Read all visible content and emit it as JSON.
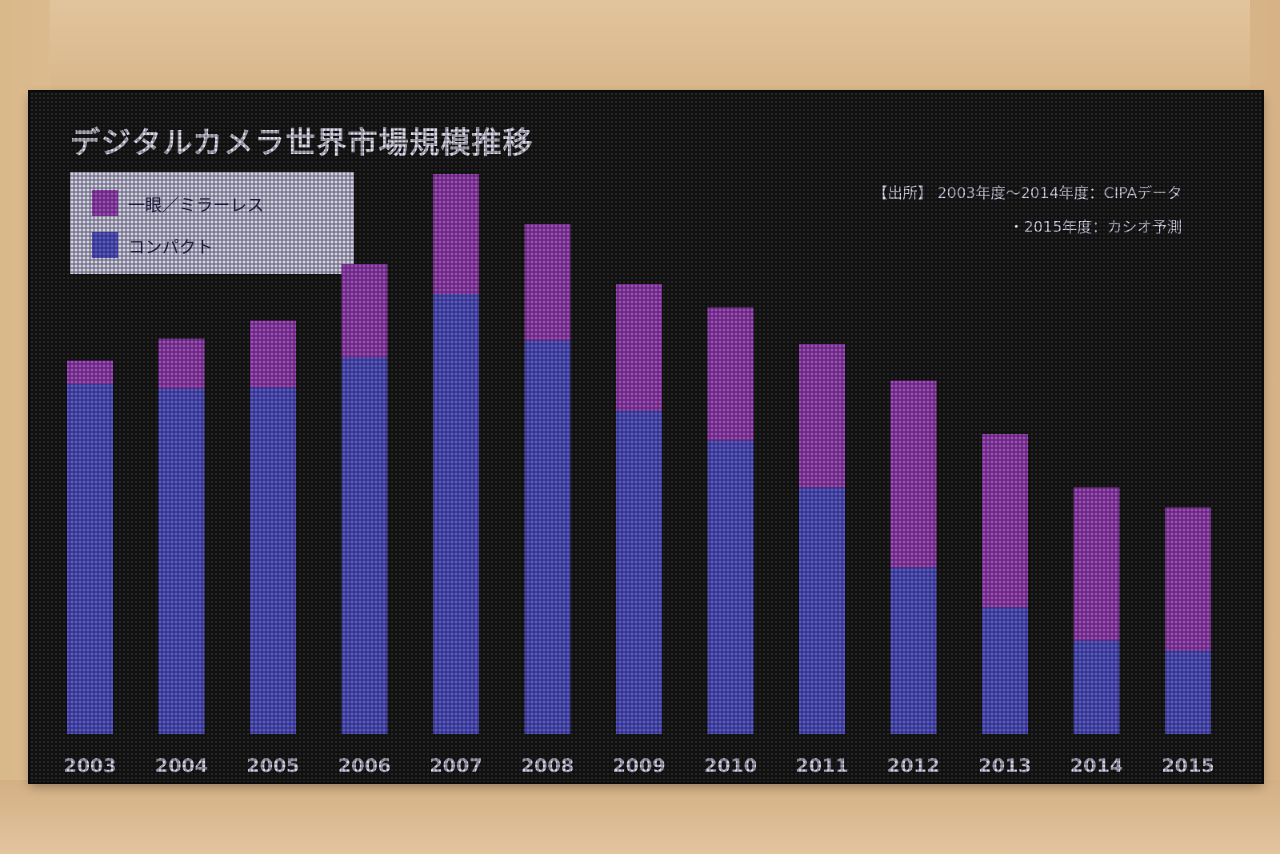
{
  "chart_data": {
    "type": "bar",
    "stacked": true,
    "title": "デジタルカメラ世界市場規模推移",
    "source_lines": [
      "【出所】 2003年度〜2014年度：CIPAデータ",
      "・2015年度：カシオ予測"
    ],
    "categories": [
      "2003",
      "2004",
      "2005",
      "2006",
      "2007",
      "2008",
      "2009",
      "2010",
      "2011",
      "2012",
      "2013",
      "2014",
      "2015"
    ],
    "series": [
      {
        "name": "コンパクト",
        "color": "#5a5ad8",
        "values": [
          52.5,
          51.8,
          52.0,
          56.5,
          66.0,
          59.0,
          48.5,
          44.0,
          37.0,
          25.0,
          19.0,
          14.0,
          12.5
        ]
      },
      {
        "name": "一眼／ミラーレス",
        "color": "#a648c8",
        "values": [
          3.5,
          7.5,
          10.0,
          14.0,
          18.0,
          17.5,
          19.0,
          20.0,
          21.5,
          28.0,
          26.0,
          23.0,
          21.5
        ]
      }
    ],
    "ylim": [
      0,
      90
    ],
    "legend_position": "top-left",
    "grid": false
  }
}
